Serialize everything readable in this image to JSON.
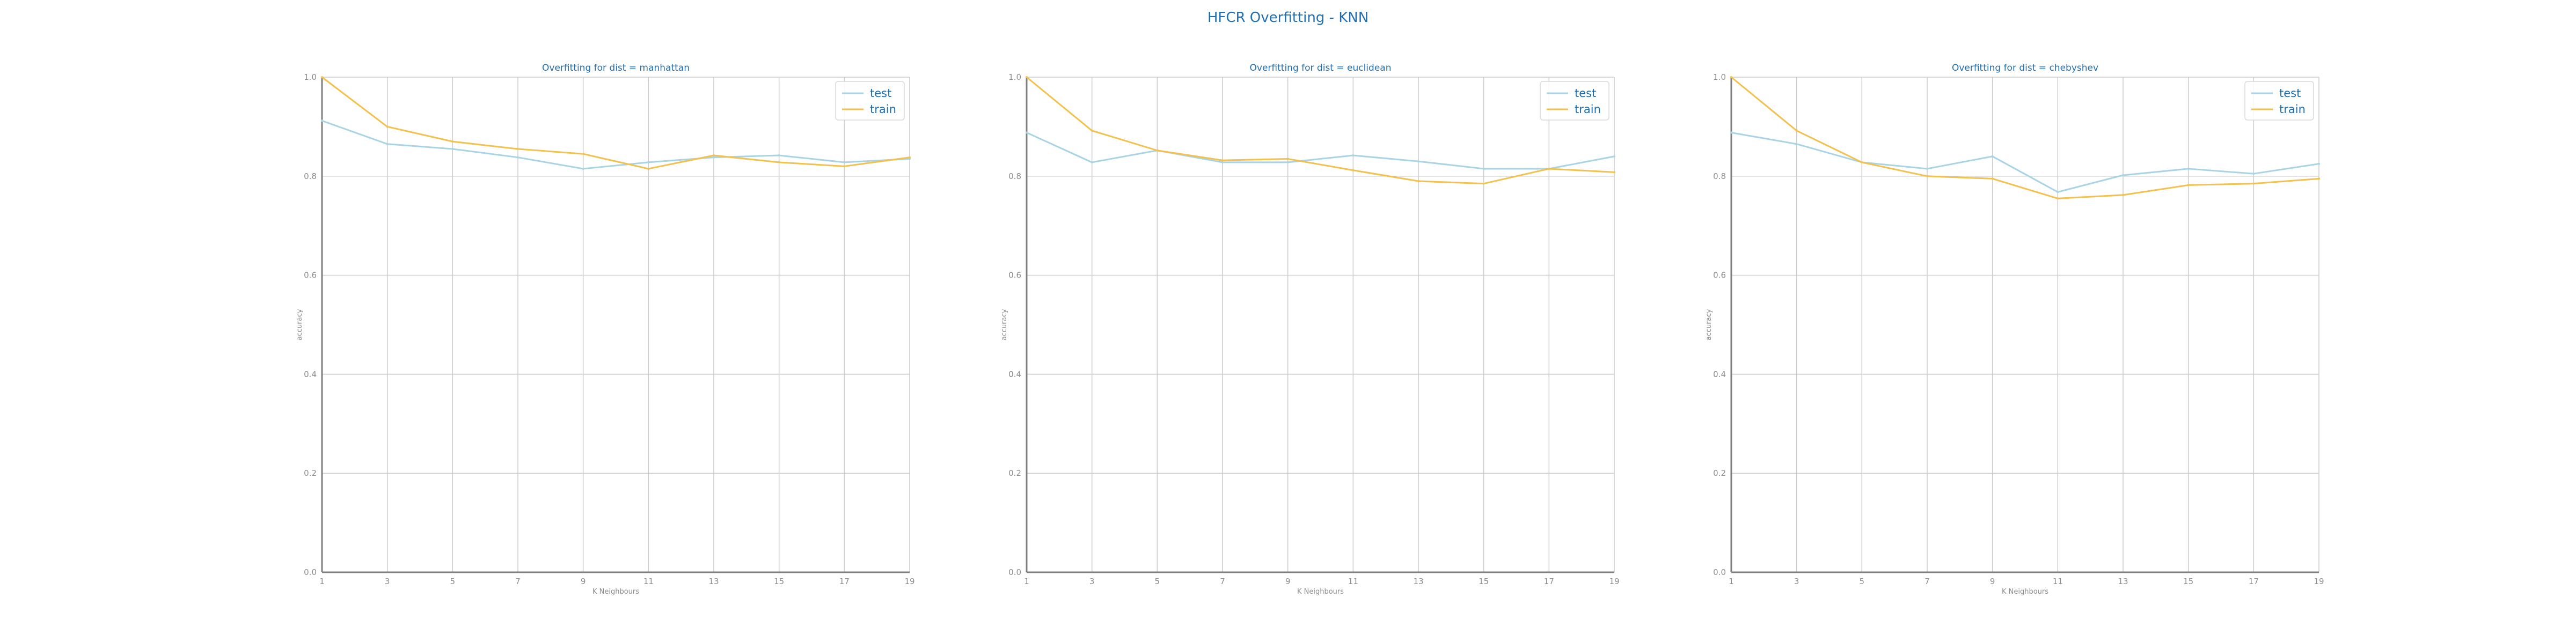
{
  "figure": {
    "title": "HFCR Overfitting - KNN",
    "title_color": "#1f6fb2",
    "test_color": "#a8d4e6",
    "train_color": "#f2c14e",
    "axis_color": "#7f7f7f",
    "grid_color": "#cccccc",
    "tick_label_color": "#8c8c8c",
    "subtitle_color": "#1f6fb2"
  },
  "chart_data": [
    {
      "type": "line",
      "title": "Overfitting for dist = manhattan",
      "xlabel": "K Neighbours",
      "ylabel": "accuracy",
      "x": [
        1,
        3,
        5,
        7,
        9,
        11,
        13,
        15,
        17,
        19
      ],
      "xticks": [
        "1",
        "3",
        "5",
        "7",
        "9",
        "11",
        "13",
        "15",
        "17",
        "19"
      ],
      "yticks": [
        "0.0",
        "0.2",
        "0.4",
        "0.6",
        "0.8",
        "1.0"
      ],
      "xlim": [
        1,
        19
      ],
      "ylim": [
        0,
        1
      ],
      "grid": true,
      "legend": "top-right",
      "series": [
        {
          "name": "test",
          "values": [
            0.912,
            0.865,
            0.855,
            0.838,
            0.815,
            0.828,
            0.838,
            0.842,
            0.828,
            0.835
          ]
        },
        {
          "name": "train",
          "values": [
            1.0,
            0.9,
            0.87,
            0.855,
            0.845,
            0.815,
            0.842,
            0.828,
            0.82,
            0.838
          ]
        }
      ]
    },
    {
      "type": "line",
      "title": "Overfitting for dist = euclidean",
      "xlabel": "K Neighbours",
      "ylabel": "accuracy",
      "x": [
        1,
        3,
        5,
        7,
        9,
        11,
        13,
        15,
        17,
        19
      ],
      "xticks": [
        "1",
        "3",
        "5",
        "7",
        "9",
        "11",
        "13",
        "15",
        "17",
        "19"
      ],
      "yticks": [
        "0.0",
        "0.2",
        "0.4",
        "0.6",
        "0.8",
        "1.0"
      ],
      "xlim": [
        1,
        19
      ],
      "ylim": [
        0,
        1
      ],
      "grid": true,
      "legend": "top-right",
      "series": [
        {
          "name": "test",
          "values": [
            0.888,
            0.828,
            0.852,
            0.828,
            0.828,
            0.842,
            0.83,
            0.815,
            0.815,
            0.84
          ]
        },
        {
          "name": "train",
          "values": [
            1.0,
            0.892,
            0.852,
            0.832,
            0.835,
            0.812,
            0.79,
            0.785,
            0.815,
            0.808
          ]
        }
      ]
    },
    {
      "type": "line",
      "title": "Overfitting for dist = chebyshev",
      "xlabel": "K Neighbours",
      "ylabel": "accuracy",
      "x": [
        1,
        3,
        5,
        7,
        9,
        11,
        13,
        15,
        17,
        19
      ],
      "xticks": [
        "1",
        "3",
        "5",
        "7",
        "9",
        "11",
        "13",
        "15",
        "17",
        "19"
      ],
      "yticks": [
        "0.0",
        "0.2",
        "0.4",
        "0.6",
        "0.8",
        "1.0"
      ],
      "xlim": [
        1,
        19
      ],
      "ylim": [
        0,
        1
      ],
      "grid": true,
      "legend": "top-right",
      "series": [
        {
          "name": "test",
          "values": [
            0.888,
            0.865,
            0.828,
            0.815,
            0.84,
            0.768,
            0.802,
            0.815,
            0.805,
            0.825
          ]
        },
        {
          "name": "train",
          "values": [
            1.0,
            0.892,
            0.828,
            0.8,
            0.795,
            0.755,
            0.762,
            0.782,
            0.785,
            0.795
          ]
        }
      ]
    }
  ]
}
